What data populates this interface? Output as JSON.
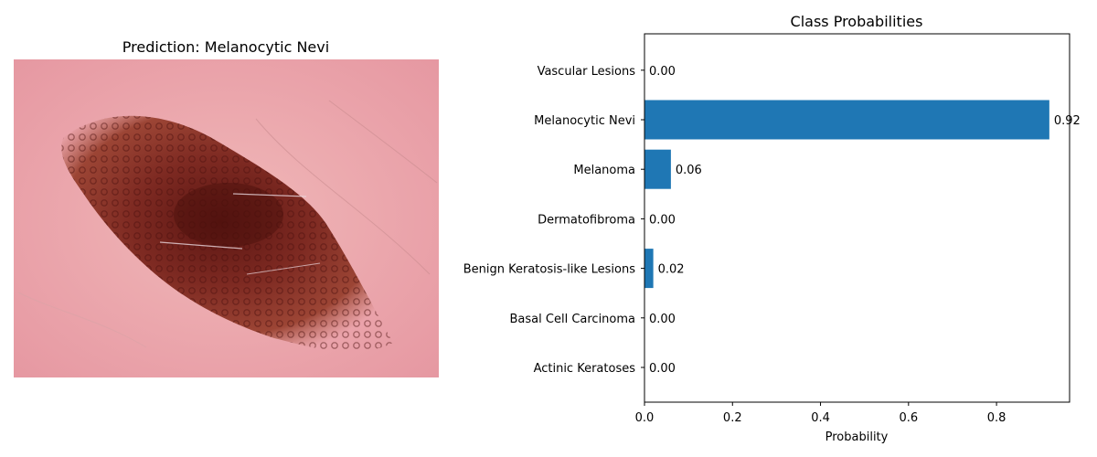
{
  "image_panel": {
    "title": "Prediction: Melanocytic Nevi"
  },
  "chart_data": {
    "type": "bar",
    "orientation": "horizontal",
    "title": "Class Probabilities",
    "xlabel": "Probability",
    "ylabel": "",
    "xlim": [
      0,
      0.966
    ],
    "xticks": [
      "0.0",
      "0.2",
      "0.4",
      "0.6",
      "0.8"
    ],
    "xtick_values": [
      0,
      0.2,
      0.4,
      0.6,
      0.8
    ],
    "grid": false,
    "categories": [
      "Actinic Keratoses",
      "Basal Cell Carcinoma",
      "Benign Keratosis-like Lesions",
      "Dermatofibroma",
      "Melanoma",
      "Melanocytic Nevi",
      "Vascular Lesions"
    ],
    "values": [
      0.0,
      0.0,
      0.02,
      0.0,
      0.06,
      0.92,
      0.0
    ],
    "value_labels": [
      "0.00",
      "0.00",
      "0.02",
      "0.00",
      "0.06",
      "0.92",
      "0.00"
    ],
    "bar_color": "#1f77b4"
  }
}
